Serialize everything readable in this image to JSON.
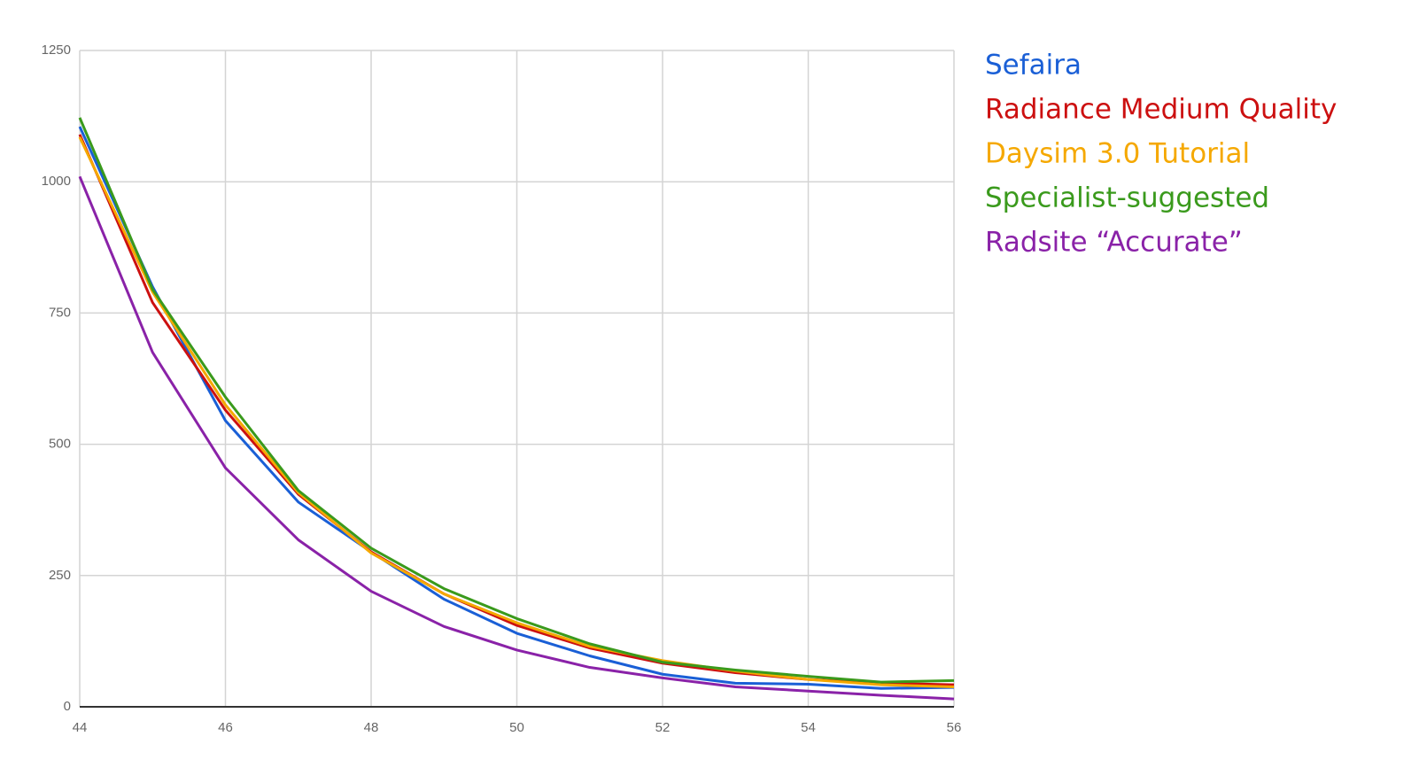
{
  "chart_data": {
    "type": "line",
    "x": [
      44,
      45,
      46,
      47,
      48,
      49,
      50,
      51,
      52,
      53,
      54,
      55,
      56
    ],
    "xlim": [
      44,
      56
    ],
    "xticks": [
      44,
      46,
      48,
      50,
      52,
      54,
      56
    ],
    "ylim": [
      0,
      1250
    ],
    "yticks": [
      0,
      250,
      500,
      750,
      1000,
      1250
    ],
    "grid": true,
    "legend": "right",
    "series": [
      {
        "name": "Sefaira",
        "color": "#1a5fd6",
        "values": [
          1105,
          800,
          545,
          390,
          295,
          205,
          140,
          97,
          62,
          45,
          43,
          35,
          37
        ]
      },
      {
        "name": "Radiance Medium Quality",
        "color": "#cc1010",
        "values": [
          1090,
          770,
          565,
          405,
          295,
          215,
          155,
          112,
          83,
          65,
          52,
          45,
          42
        ]
      },
      {
        "name": "Daysim 3.0 Tutorial",
        "color": "#f5a800",
        "values": [
          1085,
          790,
          575,
          408,
          293,
          215,
          160,
          115,
          88,
          68,
          52,
          42,
          38
        ]
      },
      {
        "name": "Specialist-suggested",
        "color": "#3a9a1c",
        "values": [
          1122,
          795,
          590,
          412,
          302,
          225,
          168,
          120,
          85,
          70,
          58,
          47,
          50
        ]
      },
      {
        "name": "Radsite “Accurate”",
        "color": "#8a22a8",
        "values": [
          1010,
          675,
          455,
          318,
          220,
          153,
          108,
          75,
          55,
          38,
          30,
          22,
          15
        ]
      }
    ]
  }
}
